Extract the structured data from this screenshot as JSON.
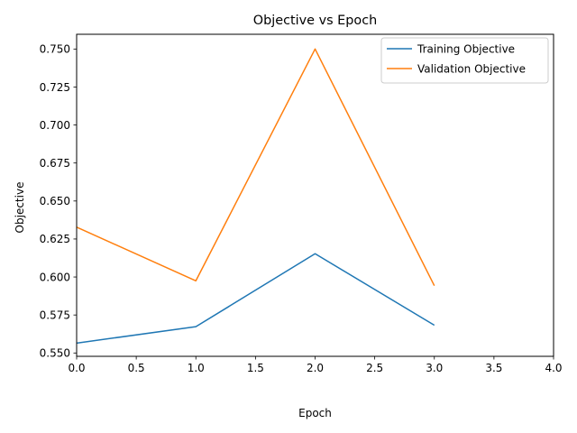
{
  "chart_data": {
    "type": "line",
    "title": "Objective vs Epoch",
    "xlabel": "Epoch",
    "ylabel": "Objective",
    "xlim": [
      0.0,
      4.0
    ],
    "ylim": [
      0.5478,
      0.7597
    ],
    "xticks": [
      "0.0",
      "0.5",
      "1.0",
      "1.5",
      "2.0",
      "2.5",
      "3.0",
      "3.5",
      "4.0"
    ],
    "yticks": [
      "0.550",
      "0.575",
      "0.600",
      "0.625",
      "0.650",
      "0.675",
      "0.700",
      "0.725",
      "0.750"
    ],
    "grid": false,
    "legend_position": "upper-right",
    "x": [
      0,
      1,
      2,
      3
    ],
    "series": [
      {
        "name": "Training Objective",
        "color": "#1f77b4",
        "values": [
          0.5565,
          0.5673,
          0.6153,
          0.5683
        ]
      },
      {
        "name": "Validation Objective",
        "color": "#ff7f0e",
        "values": [
          0.6328,
          0.5975,
          0.75,
          0.5943
        ]
      }
    ]
  }
}
